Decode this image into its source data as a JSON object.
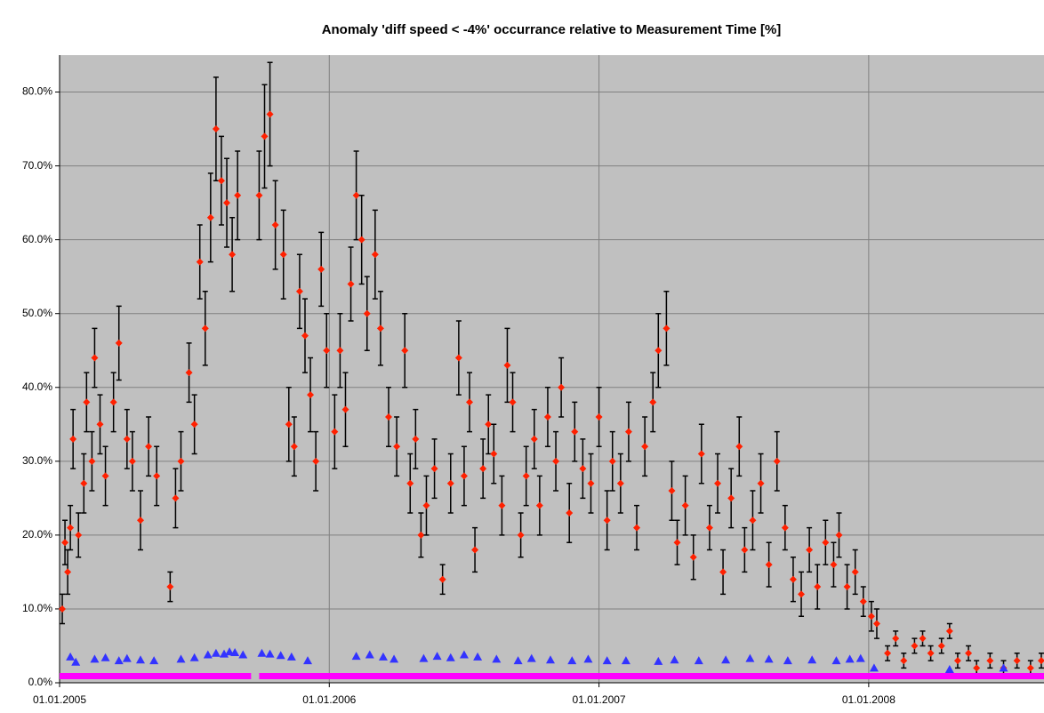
{
  "chart_data": {
    "type": "scatter",
    "title": "Anomaly 'diff speed < -4%' occurrance relative to Measurement Time [%]",
    "xlim": [
      2005,
      2008.65
    ],
    "xticks": [
      {
        "value": 2005,
        "label": "01.01.2005"
      },
      {
        "value": 2006,
        "label": "01.01.2006"
      },
      {
        "value": 2007,
        "label": "01.01.2007"
      },
      {
        "value": 2008,
        "label": "01.01.2008"
      }
    ],
    "ylim": [
      0,
      85
    ],
    "yticks": [
      {
        "value": 0,
        "label": "0.0%"
      },
      {
        "value": 10,
        "label": "10.0%"
      },
      {
        "value": 20,
        "label": "20.0%"
      },
      {
        "value": 30,
        "label": "30.0%"
      },
      {
        "value": 40,
        "label": "40.0%"
      },
      {
        "value": 50,
        "label": "50.0%"
      },
      {
        "value": 60,
        "label": "60.0%"
      },
      {
        "value": 70,
        "label": "70.0%"
      },
      {
        "value": 80,
        "label": "80.0%"
      }
    ],
    "grid": true,
    "background": "#c0c0c0",
    "grid_color": "#808080",
    "series": [
      {
        "color": "#ff2000",
        "error_color": "#000000",
        "marker": "diamond",
        "x": [
          2005.01,
          2005.02,
          2005.03,
          2005.04,
          2005.05,
          2005.07,
          2005.09,
          2005.1,
          2005.12,
          2005.13,
          2005.15,
          2005.17,
          2005.2,
          2005.22,
          2005.25,
          2005.27,
          2005.3,
          2005.33,
          2005.36,
          2005.41,
          2005.43,
          2005.45,
          2005.48,
          2005.5,
          2005.52,
          2005.54,
          2005.56,
          2005.58,
          2005.6,
          2005.62,
          2005.64,
          2005.66,
          2005.74,
          2005.76,
          2005.78,
          2005.8,
          2005.83,
          2005.85,
          2005.87,
          2005.89,
          2005.91,
          2005.93,
          2005.95,
          2005.97,
          2005.99,
          2006.02,
          2006.04,
          2006.06,
          2006.08,
          2006.1,
          2006.12,
          2006.14,
          2006.17,
          2006.19,
          2006.22,
          2006.25,
          2006.28,
          2006.3,
          2006.32,
          2006.34,
          2006.36,
          2006.39,
          2006.42,
          2006.45,
          2006.48,
          2006.5,
          2006.52,
          2006.54,
          2006.57,
          2006.59,
          2006.61,
          2006.64,
          2006.66,
          2006.68,
          2006.71,
          2006.73,
          2006.76,
          2006.78,
          2006.81,
          2006.84,
          2006.86,
          2006.89,
          2006.91,
          2006.94,
          2006.97,
          2007.0,
          2007.03,
          2007.05,
          2007.08,
          2007.11,
          2007.14,
          2007.17,
          2007.2,
          2007.22,
          2007.25,
          2007.27,
          2007.29,
          2007.32,
          2007.35,
          2007.38,
          2007.41,
          2007.44,
          2007.46,
          2007.49,
          2007.52,
          2007.54,
          2007.57,
          2007.6,
          2007.63,
          2007.66,
          2007.69,
          2007.72,
          2007.75,
          2007.78,
          2007.81,
          2007.84,
          2007.87,
          2007.89,
          2007.92,
          2007.95,
          2007.98,
          2008.01,
          2008.03,
          2008.07,
          2008.1,
          2008.13,
          2008.17,
          2008.2,
          2008.23,
          2008.27,
          2008.3,
          2008.33,
          2008.37,
          2008.4,
          2008.45,
          2008.5,
          2008.55,
          2008.6,
          2008.64
        ],
        "values": [
          10,
          19,
          15,
          21,
          33,
          20,
          27,
          38,
          30,
          44,
          35,
          28,
          38,
          46,
          33,
          30,
          22,
          32,
          28,
          13,
          25,
          30,
          42,
          35,
          57,
          48,
          63,
          75,
          68,
          65,
          58,
          66,
          66,
          74,
          77,
          62,
          58,
          35,
          32,
          53,
          47,
          39,
          30,
          56,
          45,
          34,
          45,
          37,
          54,
          66,
          60,
          50,
          58,
          48,
          36,
          32,
          45,
          27,
          33,
          20,
          24,
          29,
          14,
          27,
          44,
          28,
          38,
          18,
          29,
          35,
          31,
          24,
          43,
          38,
          20,
          28,
          33,
          24,
          36,
          30,
          40,
          23,
          34,
          29,
          27,
          36,
          22,
          30,
          27,
          34,
          21,
          32,
          38,
          45,
          48,
          26,
          19,
          24,
          17,
          31,
          21,
          27,
          15,
          25,
          32,
          18,
          22,
          27,
          16,
          30,
          21,
          14,
          12,
          18,
          13,
          19,
          16,
          20,
          13,
          15,
          11,
          9,
          8,
          4,
          6,
          3,
          5,
          6,
          4,
          5,
          7,
          3,
          4,
          2,
          3,
          2,
          3,
          2,
          3
        ],
        "errors": [
          2,
          3,
          3,
          3,
          4,
          3,
          4,
          4,
          4,
          4,
          4,
          4,
          4,
          5,
          4,
          4,
          4,
          4,
          4,
          2,
          4,
          4,
          4,
          4,
          5,
          5,
          6,
          7,
          6,
          6,
          5,
          6,
          6,
          7,
          7,
          6,
          6,
          5,
          4,
          5,
          5,
          5,
          4,
          5,
          5,
          5,
          5,
          5,
          5,
          6,
          6,
          5,
          6,
          5,
          4,
          4,
          5,
          4,
          4,
          3,
          4,
          4,
          2,
          4,
          5,
          4,
          4,
          3,
          4,
          4,
          4,
          4,
          5,
          4,
          3,
          4,
          4,
          4,
          4,
          4,
          4,
          4,
          4,
          4,
          4,
          4,
          4,
          4,
          4,
          4,
          3,
          4,
          4,
          5,
          5,
          4,
          3,
          4,
          3,
          4,
          3,
          4,
          3,
          4,
          4,
          3,
          4,
          4,
          3,
          4,
          3,
          3,
          3,
          3,
          3,
          3,
          3,
          3,
          3,
          3,
          2,
          2,
          2,
          1,
          1,
          1,
          1,
          1,
          1,
          1,
          1,
          1,
          1,
          1,
          1,
          1,
          1,
          1,
          1
        ]
      },
      {
        "color": "#3333ff",
        "marker": "triangle",
        "x": [
          2005.04,
          2005.06,
          2005.13,
          2005.17,
          2005.22,
          2005.25,
          2005.3,
          2005.35,
          2005.45,
          2005.5,
          2005.55,
          2005.58,
          2005.61,
          2005.63,
          2005.65,
          2005.68,
          2005.75,
          2005.78,
          2005.82,
          2005.86,
          2005.92,
          2006.1,
          2006.15,
          2006.2,
          2006.24,
          2006.35,
          2006.4,
          2006.45,
          2006.5,
          2006.55,
          2006.62,
          2006.7,
          2006.75,
          2006.82,
          2006.9,
          2006.96,
          2007.03,
          2007.1,
          2007.22,
          2007.28,
          2007.37,
          2007.47,
          2007.56,
          2007.63,
          2007.7,
          2007.79,
          2007.88,
          2007.93,
          2007.97,
          2008.02,
          2008.3,
          2008.5
        ],
        "values": [
          3.5,
          2.8,
          3.2,
          3.4,
          3.0,
          3.3,
          3.1,
          3.0,
          3.2,
          3.4,
          3.8,
          4.0,
          3.9,
          4.2,
          4.1,
          3.8,
          4.0,
          3.9,
          3.7,
          3.5,
          3.0,
          3.6,
          3.8,
          3.5,
          3.2,
          3.3,
          3.6,
          3.4,
          3.8,
          3.5,
          3.2,
          3.0,
          3.3,
          3.1,
          3.0,
          3.2,
          3.0,
          3.0,
          2.9,
          3.1,
          3.0,
          3.1,
          3.3,
          3.2,
          3.0,
          3.1,
          3.0,
          3.2,
          3.3,
          2.0,
          1.8,
          2.0
        ]
      },
      {
        "color": "#ff00ff",
        "mode": "line",
        "x": [
          2005,
          2005.71,
          2005.72,
          2005.74,
          2008.65
        ],
        "values": [
          0.9,
          0.9,
          null,
          0.9,
          0.9
        ]
      }
    ]
  }
}
